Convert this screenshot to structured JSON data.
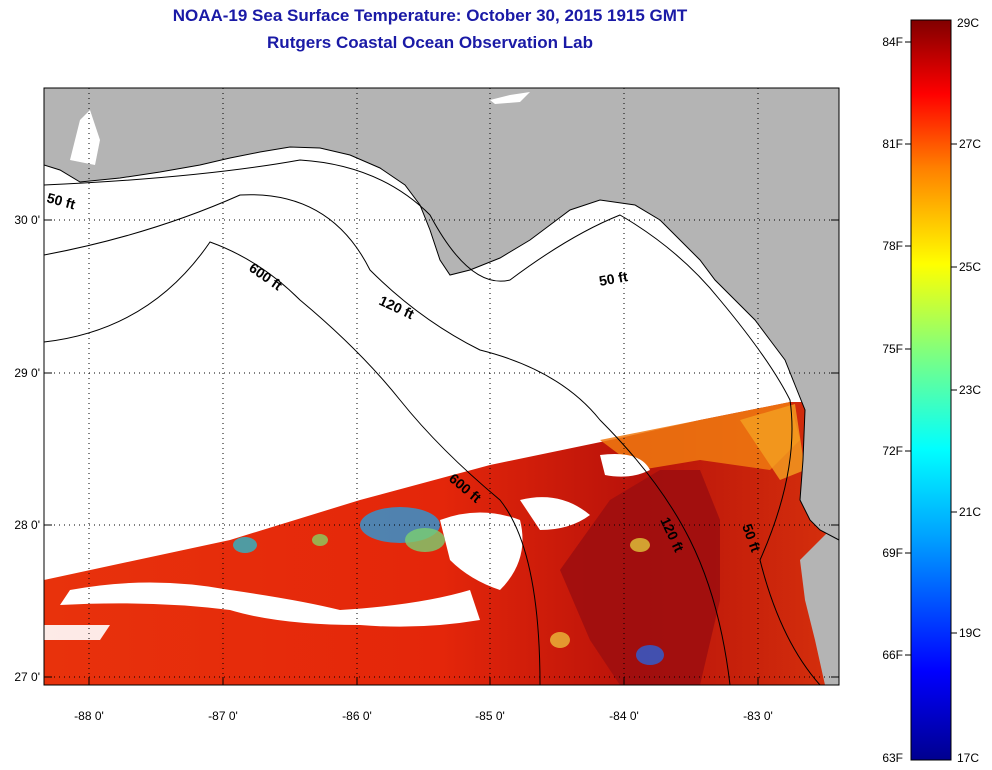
{
  "title_line1": "NOAA-19 Sea Surface Temperature:  October 30, 2015 1915 GMT",
  "title_line2": "Rutgers Coastal Ocean Observation Lab",
  "lat_labels": [
    "30 0'",
    "29 0'",
    "28 0'",
    "27 0'"
  ],
  "lon_labels": [
    "-88 0'",
    "-87 0'",
    "-86 0'",
    "-85 0'",
    "-84 0'",
    "-83 0'"
  ],
  "contour_labels": {
    "c50_west": "50 ft",
    "c600_north": "600 ft",
    "c120_north": "120 ft",
    "c50_east": "50 ft",
    "c600_south": "600 ft",
    "c120_south": "120 ft",
    "c50_south": "50 ft"
  },
  "colorbar": {
    "fahrenheit": [
      "84F",
      "81F",
      "78F",
      "75F",
      "72F",
      "69F",
      "66F",
      "63F"
    ],
    "celsius": [
      "29C",
      "27C",
      "25C",
      "23C",
      "21C",
      "19C",
      "17C"
    ]
  },
  "colors": {
    "land": "#b4b4b4",
    "title": "#1a1aa6",
    "sst_warm": "#e62a0a",
    "sst_hot": "#9a0c0c",
    "sst_orange": "#f07a10",
    "sst_cool": "#2a9ad8"
  }
}
